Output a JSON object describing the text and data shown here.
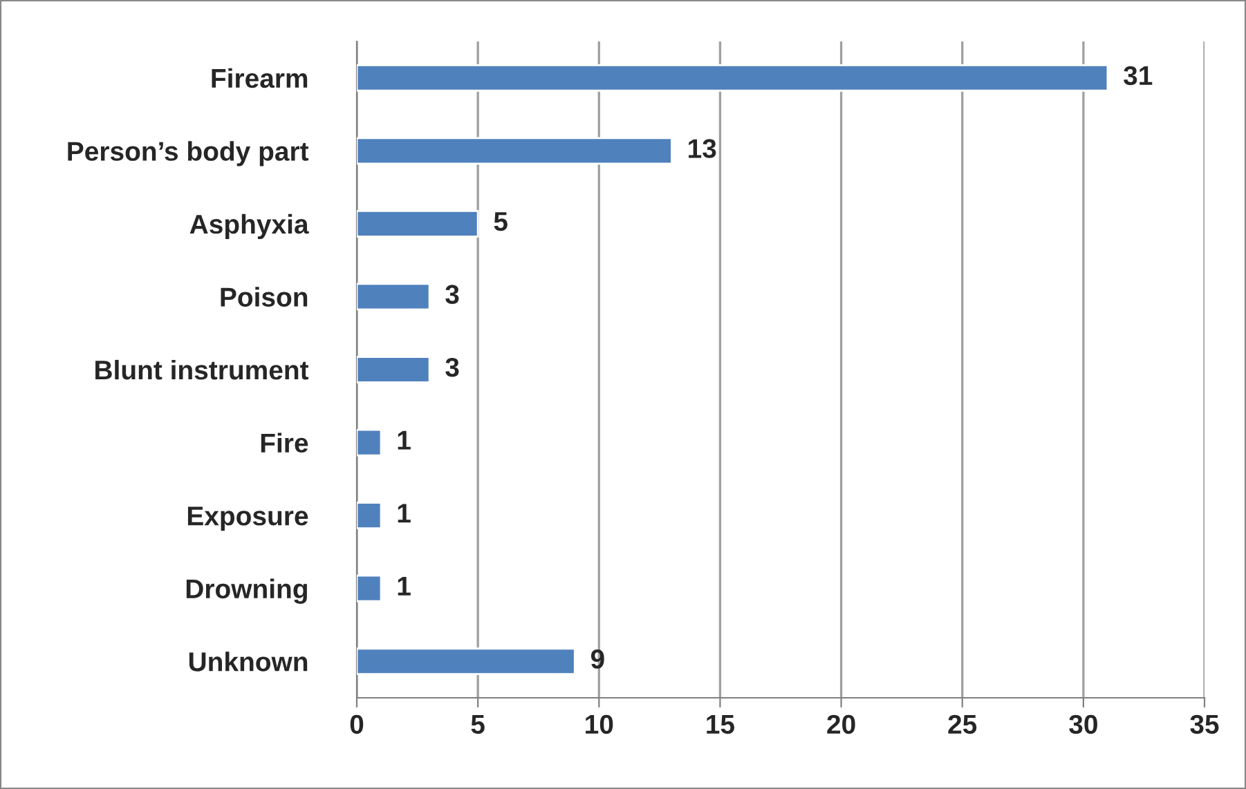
{
  "chart_data": {
    "type": "bar",
    "orientation": "horizontal",
    "categories": [
      "Firearm",
      "Person’s body part",
      "Asphyxia",
      "Poison",
      "Blunt instrument",
      "Fire",
      "Exposure",
      "Drowning",
      "Unknown"
    ],
    "values": [
      31,
      13,
      5,
      3,
      3,
      1,
      1,
      1,
      9
    ],
    "color": "#4f81bd",
    "xlim": [
      0,
      35
    ],
    "xticks": [
      0,
      5,
      10,
      15,
      20,
      25,
      30,
      35
    ],
    "grid": "x",
    "data_labels": true
  }
}
